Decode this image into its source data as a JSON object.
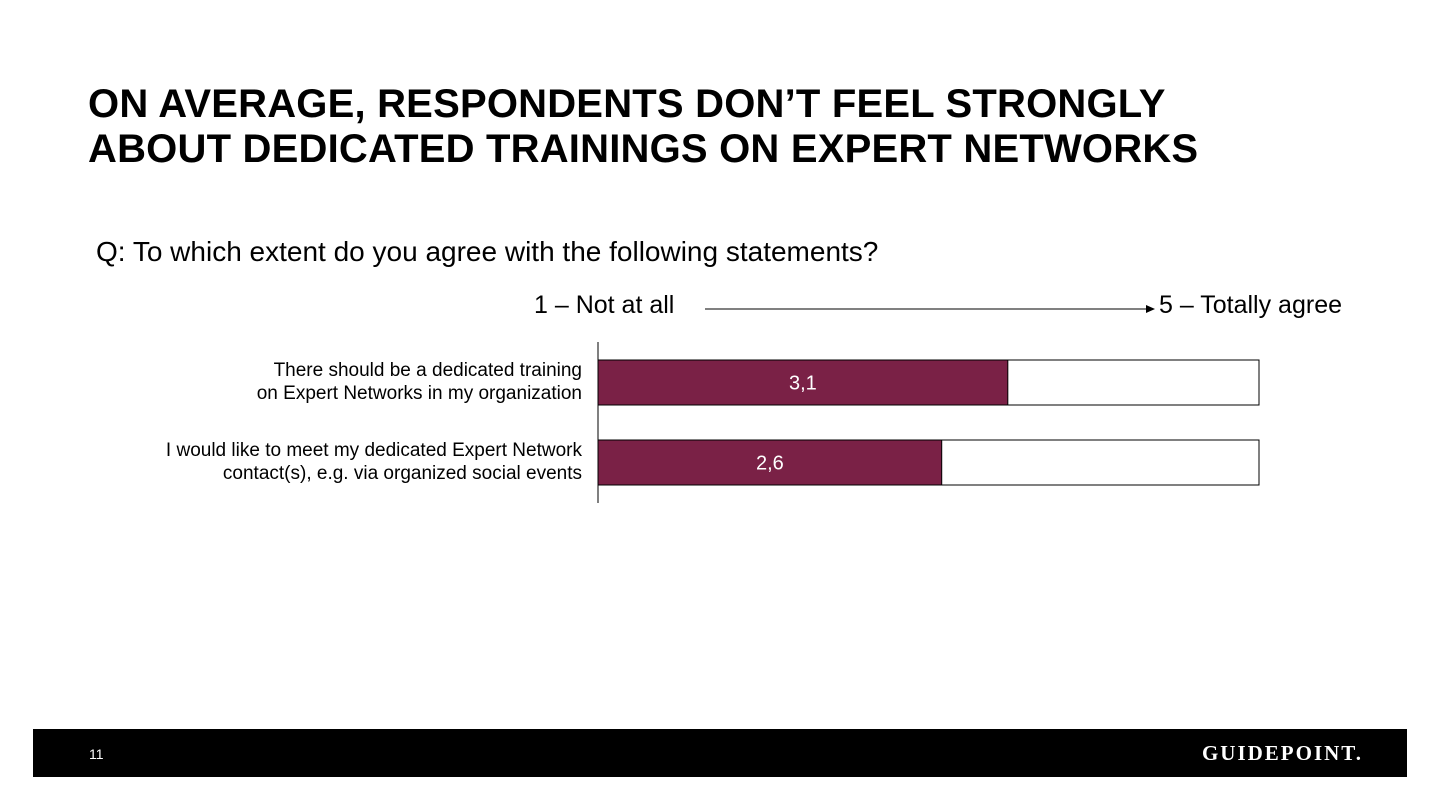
{
  "slide": {
    "title_lines": [
      "ON AVERAGE, RESPONDENTS DON’T FEEL STRONGLY",
      "ABOUT DEDICATED TRAININGS ON EXPERT NETWORKS"
    ],
    "question": "Q: To which extent do you agree with the following statements?",
    "scale_low_label": "1 – Not at all",
    "scale_high_label": "5 – Totally agree",
    "page_number": "11",
    "logo_text": "GUIDEPOINT."
  },
  "colors": {
    "bar_fill": "#7a2146",
    "bar_border": "#000000",
    "footer_bg": "#000000"
  },
  "chart_data": {
    "type": "bar",
    "orientation": "horizontal",
    "categories": [
      [
        "There should be a dedicated training",
        "on Expert Networks in my organization"
      ],
      [
        "I would like to meet my dedicated Expert Network",
        "contact(s), e.g. via organized social events"
      ]
    ],
    "values": [
      3.1,
      2.6
    ],
    "data_labels": [
      "3,1",
      "2,6"
    ],
    "xlim": [
      0,
      5
    ],
    "grid": false,
    "legend": "none"
  }
}
